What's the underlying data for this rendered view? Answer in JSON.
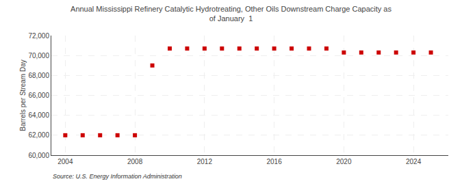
{
  "chart_data": {
    "type": "scatter",
    "title": "Annual Mississippi Refinery Catalytic Hydrotreating, Other Oils Downstream Charge Capacity as\nof January  1",
    "ylabel": "Barrels per Stream Day",
    "source": "Source: U.S. Energy Information Administration",
    "x": [
      2004,
      2005,
      2006,
      2007,
      2008,
      2009,
      2010,
      2011,
      2012,
      2013,
      2014,
      2015,
      2016,
      2017,
      2018,
      2019,
      2020,
      2021,
      2022,
      2023,
      2024,
      2025
    ],
    "values": [
      62000,
      62000,
      62000,
      62000,
      62000,
      69000,
      70700,
      70700,
      70700,
      70700,
      70700,
      70700,
      70700,
      70700,
      70700,
      70700,
      70300,
      70300,
      70300,
      70300,
      70300,
      70300
    ],
    "color": "#cc0000",
    "marker": "square",
    "xlim": [
      2003.2,
      2026.0
    ],
    "xticks": [
      2004,
      2008,
      2012,
      2016,
      2020,
      2024
    ],
    "ylim": [
      60000,
      72000
    ],
    "yticks": [
      {
        "value": 60000,
        "label": "60,000"
      },
      {
        "value": 62000,
        "label": "62,000"
      },
      {
        "value": 64000,
        "label": "64,000"
      },
      {
        "value": 66000,
        "label": "66,000"
      },
      {
        "value": 68000,
        "label": "68,000"
      },
      {
        "value": 70000,
        "label": "70,000"
      },
      {
        "value": 72000,
        "label": "72,000"
      }
    ],
    "grid": true
  }
}
